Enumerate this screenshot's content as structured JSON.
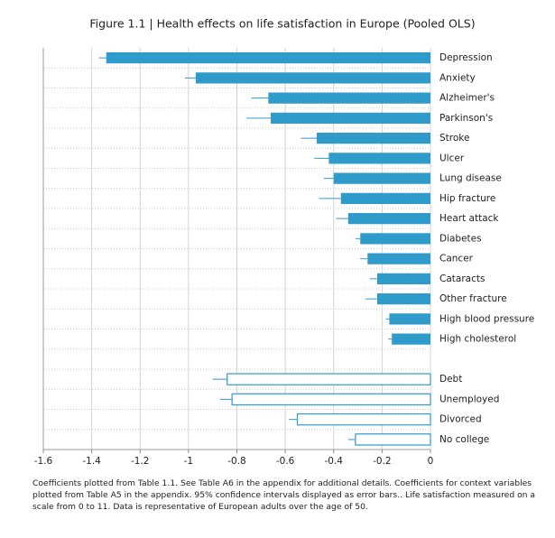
{
  "chart_data": {
    "type": "hbar-errors",
    "title": "Figure 1.1  |  Health effects on life satisfaction in Europe (Pooled OLS)",
    "categories": [
      "Depression",
      "Anxiety",
      "Alzheimer's",
      "Parkinson's",
      "Stroke",
      "Ulcer",
      "Lung disease",
      "Hip fracture",
      "Heart attack",
      "Diabetes",
      "Cancer",
      "Cataracts",
      "Other fracture",
      "High blood pressure",
      "High cholesterol",
      null,
      "Debt",
      "Unemployed",
      "Divorced",
      "No college"
    ],
    "series": [
      {
        "color": "#2e9bcb",
        "fill": true,
        "values": [
          -1.34,
          -0.97,
          -0.67,
          -0.66,
          -0.47,
          -0.42,
          -0.4,
          -0.37,
          -0.34,
          -0.29,
          -0.26,
          -0.22,
          -0.22,
          -0.17,
          -0.16,
          null,
          null,
          null,
          null,
          null
        ],
        "errors": [
          0.03,
          0.045,
          0.07,
          0.1,
          0.065,
          0.06,
          0.04,
          0.09,
          0.05,
          0.02,
          0.03,
          0.03,
          0.05,
          0.015,
          0.015,
          null,
          null,
          null,
          null,
          null
        ]
      },
      {
        "color": "#2e9bcb",
        "fill": false,
        "values": [
          null,
          null,
          null,
          null,
          null,
          null,
          null,
          null,
          null,
          null,
          null,
          null,
          null,
          null,
          null,
          null,
          -0.84,
          -0.82,
          -0.55,
          -0.31
        ],
        "errors": [
          null,
          null,
          null,
          null,
          null,
          null,
          null,
          null,
          null,
          null,
          null,
          null,
          null,
          null,
          null,
          null,
          0.06,
          0.05,
          0.035,
          0.03
        ]
      }
    ],
    "xlim": [
      -1.6,
      0
    ],
    "xticks": [
      -1.6,
      -1.4,
      -1.2,
      -1,
      -0.8,
      -0.6,
      -0.4,
      -0.2,
      0
    ],
    "grid": true,
    "note": "Coefficients plotted from Table 1.1. See Table A6 in the appendix for additional details. Coefficients for context variables plotted from Table A5 in the appendix. 95% confidence intervals displayed as error bars.. Life satisfaction measured on a scale from 0 to 11. Data is representative of European adults over the age of 50."
  }
}
